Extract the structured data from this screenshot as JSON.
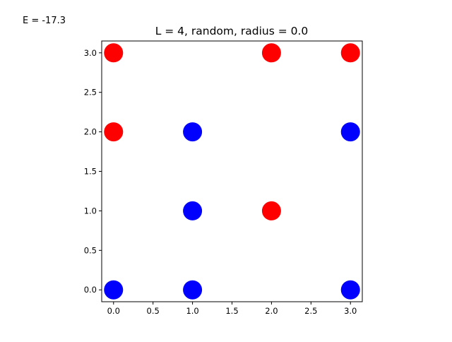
{
  "energy_label": "E = -17.3",
  "chart_data": {
    "type": "scatter",
    "title": "L = 4, random, radius = 0.0",
    "xlabel": "",
    "ylabel": "",
    "xlim": [
      -0.15,
      3.15
    ],
    "ylim": [
      -0.15,
      3.15
    ],
    "xticks": [
      "0.0",
      "0.5",
      "1.0",
      "1.5",
      "2.0",
      "2.5",
      "3.0"
    ],
    "yticks": [
      "0.0",
      "0.5",
      "1.0",
      "1.5",
      "2.0",
      "2.5",
      "3.0"
    ],
    "grid": false,
    "colors": {
      "red": "#ff0000",
      "blue": "#0000ff"
    },
    "points": [
      {
        "x": 0,
        "y": 3,
        "color": "red"
      },
      {
        "x": 2,
        "y": 3,
        "color": "red"
      },
      {
        "x": 3,
        "y": 3,
        "color": "red"
      },
      {
        "x": 0,
        "y": 2,
        "color": "red"
      },
      {
        "x": 1,
        "y": 2,
        "color": "blue"
      },
      {
        "x": 3,
        "y": 2,
        "color": "blue"
      },
      {
        "x": 1,
        "y": 1,
        "color": "blue"
      },
      {
        "x": 2,
        "y": 1,
        "color": "red"
      },
      {
        "x": 0,
        "y": 0,
        "color": "blue"
      },
      {
        "x": 1,
        "y": 0,
        "color": "blue"
      },
      {
        "x": 3,
        "y": 0,
        "color": "blue"
      }
    ]
  }
}
